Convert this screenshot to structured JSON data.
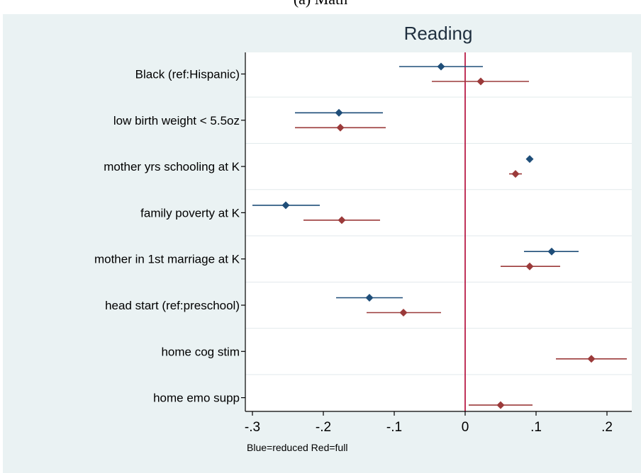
{
  "caption": "(a) Math",
  "chart_data": {
    "type": "scatter",
    "title": "Reading",
    "note": "Blue=reduced Red=full",
    "categories": [
      "Black (ref:Hispanic)",
      "low birth weight < 5.5oz",
      "mother yrs schooling at K",
      "family poverty at K",
      "mother in 1st marriage at K",
      "head start (ref:preschool)",
      "home cog stim",
      "home emo supp"
    ],
    "xlim": [
      -0.31,
      0.235
    ],
    "xticks": [
      -0.3,
      -0.2,
      -0.1,
      0,
      0.1,
      0.2
    ],
    "xtick_labels": [
      "-.3",
      "-.2",
      "-.1",
      "0",
      ".1",
      ".2"
    ],
    "reference_line_x": 0,
    "grid": "horizontal",
    "series": [
      {
        "color": "#1f4e79",
        "points": [
          {
            "estimate": -0.034,
            "ci": [
              -0.093,
              0.025
            ]
          },
          {
            "estimate": -0.178,
            "ci": [
              -0.24,
              -0.116
            ]
          },
          {
            "estimate": 0.091,
            "ci": [
              0.087,
              0.095
            ]
          },
          {
            "estimate": -0.253,
            "ci": [
              -0.3,
              -0.205
            ]
          },
          {
            "estimate": 0.122,
            "ci": [
              0.083,
              0.16
            ]
          },
          {
            "estimate": -0.135,
            "ci": [
              -0.182,
              -0.088
            ]
          },
          null,
          null
        ]
      },
      {
        "color": "#9b3a3a",
        "points": [
          {
            "estimate": 0.022,
            "ci": [
              -0.047,
              0.09
            ]
          },
          {
            "estimate": -0.176,
            "ci": [
              -0.24,
              -0.112
            ]
          },
          {
            "estimate": 0.071,
            "ci": [
              0.062,
              0.08
            ]
          },
          {
            "estimate": -0.174,
            "ci": [
              -0.228,
              -0.12
            ]
          },
          {
            "estimate": 0.091,
            "ci": [
              0.05,
              0.134
            ]
          },
          {
            "estimate": -0.087,
            "ci": [
              -0.139,
              -0.034
            ]
          },
          {
            "estimate": 0.178,
            "ci": [
              0.128,
              0.228
            ]
          },
          {
            "estimate": 0.05,
            "ci": [
              0.005,
              0.095
            ]
          }
        ]
      }
    ],
    "colors": {
      "background": "#eaf2f3",
      "plot_background": "#ffffff",
      "reference_line": "#b00030"
    }
  }
}
